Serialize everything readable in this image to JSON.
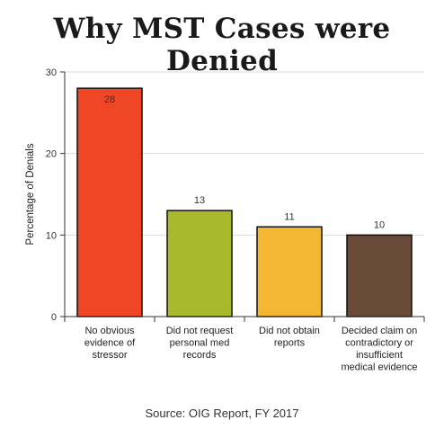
{
  "chart_data": {
    "type": "bar",
    "title": "Why MST Cases were Denied",
    "ylabel": "Percentage of Denials",
    "xlabel": "",
    "ylim": [
      0,
      30
    ],
    "yticks": [
      0,
      10,
      20,
      30
    ],
    "grid": true,
    "categories": [
      [
        "No obvious",
        "evidence of",
        "stressor"
      ],
      [
        "Did not request",
        "personal med",
        "records"
      ],
      [
        "Did not obtain",
        "reports"
      ],
      [
        "Decided claim on",
        "contradictory or",
        "insufficient",
        "medical evidence"
      ]
    ],
    "values": [
      28,
      13,
      11,
      10
    ],
    "colors": [
      "#ef4726",
      "#a8b92c",
      "#f4b733",
      "#6a4a38"
    ],
    "source": "Source: OIG Report, FY 2017"
  }
}
